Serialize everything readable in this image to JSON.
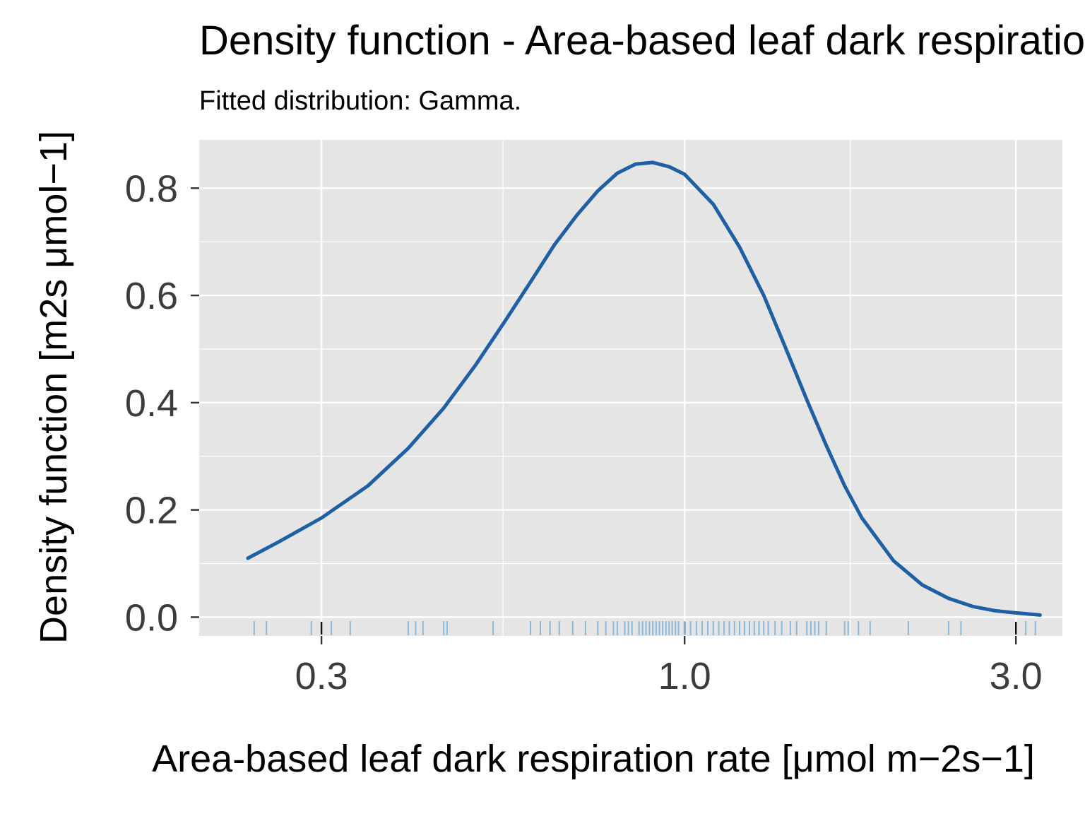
{
  "chart_data": {
    "type": "line",
    "title": "Density function - Area-based leaf dark respiration rate",
    "subtitle": "Fitted distribution: Gamma.",
    "xlabel": "Area-based leaf dark respiration rate [μmol m−2s−1]",
    "ylabel": "Density function [m2s μmol−1]",
    "x_scale": "log10",
    "xlim": [
      0.2,
      3.5
    ],
    "ylim": [
      -0.035,
      0.89
    ],
    "x_ticks": [
      0.3,
      1.0,
      3.0
    ],
    "x_tick_labels": [
      "0.3",
      "1.0",
      "3.0"
    ],
    "y_ticks": [
      0.0,
      0.2,
      0.4,
      0.6,
      0.8
    ],
    "y_tick_labels": [
      "0.0",
      "0.2",
      "0.4",
      "0.6",
      "0.8"
    ],
    "grid": true,
    "colors": {
      "line": "#1f5fa3",
      "rug": "#8ab8d8",
      "panel": "#e5e5e5",
      "grid": "#ffffff"
    },
    "series": [
      {
        "x": [
          0.235,
          0.26,
          0.3,
          0.35,
          0.4,
          0.45,
          0.5,
          0.55,
          0.6,
          0.65,
          0.7,
          0.75,
          0.8,
          0.85,
          0.9,
          0.95,
          1.0,
          1.1,
          1.2,
          1.3,
          1.4,
          1.5,
          1.6,
          1.7,
          1.8,
          2.0,
          2.2,
          2.4,
          2.6,
          2.8,
          3.0,
          3.25
        ],
        "y": [
          0.11,
          0.14,
          0.185,
          0.245,
          0.315,
          0.39,
          0.47,
          0.55,
          0.625,
          0.695,
          0.75,
          0.795,
          0.828,
          0.845,
          0.848,
          0.84,
          0.826,
          0.77,
          0.69,
          0.6,
          0.5,
          0.405,
          0.32,
          0.245,
          0.185,
          0.105,
          0.06,
          0.035,
          0.02,
          0.012,
          0.008,
          0.004
        ]
      }
    ],
    "rug": [
      0.24,
      0.25,
      0.29,
      0.31,
      0.33,
      0.4,
      0.41,
      0.42,
      0.45,
      0.455,
      0.53,
      0.6,
      0.62,
      0.64,
      0.66,
      0.69,
      0.72,
      0.75,
      0.77,
      0.79,
      0.8,
      0.82,
      0.83,
      0.84,
      0.86,
      0.87,
      0.88,
      0.89,
      0.9,
      0.91,
      0.92,
      0.93,
      0.94,
      0.95,
      0.96,
      0.97,
      0.98,
      1.0,
      1.02,
      1.04,
      1.06,
      1.08,
      1.1,
      1.12,
      1.14,
      1.16,
      1.18,
      1.2,
      1.22,
      1.24,
      1.26,
      1.28,
      1.3,
      1.32,
      1.35,
      1.38,
      1.42,
      1.45,
      1.5,
      1.52,
      1.54,
      1.56,
      1.6,
      1.7,
      1.72,
      1.78,
      1.85,
      2.1,
      2.4,
      2.5,
      3.1,
      3.2
    ]
  }
}
